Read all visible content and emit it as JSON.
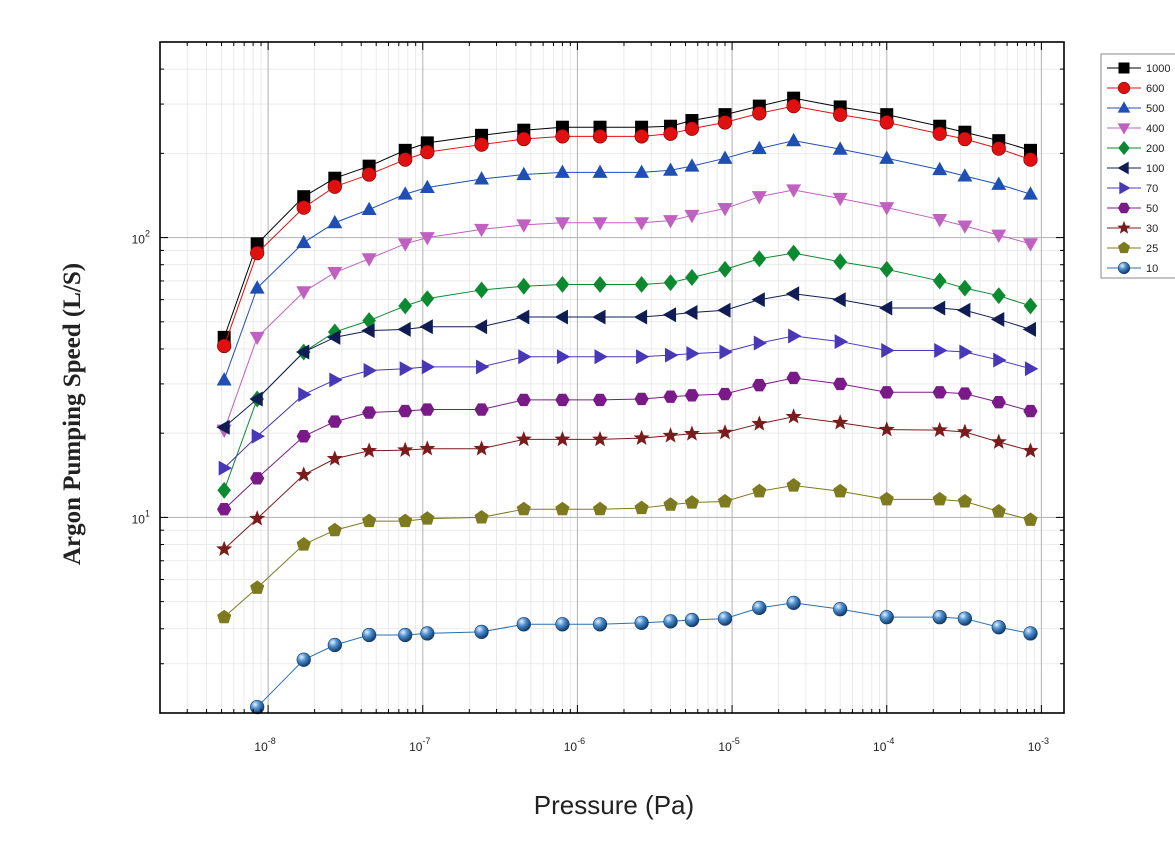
{
  "chart_data": {
    "type": "line",
    "title": "",
    "xlabel": "Pressure (Pa)",
    "ylabel": "Argon Pumping Speed (L/S)",
    "x_scale": "log",
    "y_scale": "log",
    "xlim": [
      2e-09,
      0.0014
    ],
    "ylim": [
      2,
      500
    ],
    "grid": true,
    "legend_position": "right",
    "x_ticks": [
      {
        "base": "10",
        "exp": "-8"
      },
      {
        "base": "10",
        "exp": "-7"
      },
      {
        "base": "10",
        "exp": "-6"
      },
      {
        "base": "10",
        "exp": "-5"
      },
      {
        "base": "10",
        "exp": "-4"
      },
      {
        "base": "10",
        "exp": "-3"
      }
    ],
    "y_ticks": [
      {
        "base": "10",
        "exp": "1"
      },
      {
        "base": "10",
        "exp": "2"
      }
    ],
    "x": [
      5.2e-09,
      8.5e-09,
      1.7e-08,
      2.7e-08,
      4.5e-08,
      7.7e-08,
      1.07e-07,
      2.4e-07,
      4.5e-07,
      8e-07,
      1.4e-06,
      2.6e-06,
      4e-06,
      5.5e-06,
      9e-06,
      1.5e-05,
      2.5e-05,
      5e-05,
      0.0001,
      0.00022,
      0.00032,
      0.00053,
      0.00085
    ],
    "series": [
      {
        "name": "1000",
        "marker": "square",
        "color": "#000000",
        "values": [
          44,
          95,
          140,
          163,
          180,
          205,
          218,
          232,
          242,
          248,
          248,
          248,
          250,
          262,
          275,
          295,
          315,
          293,
          275,
          250,
          238,
          222,
          205
        ]
      },
      {
        "name": "600",
        "marker": "circle",
        "color": "#e01010",
        "values": [
          41,
          88,
          128,
          152,
          168,
          190,
          202,
          215,
          225,
          230,
          230,
          230,
          235,
          245,
          258,
          278,
          295,
          275,
          258,
          235,
          225,
          208,
          190
        ]
      },
      {
        "name": "500",
        "marker": "triangle-up",
        "color": "#1f4fb4",
        "values": [
          31,
          66,
          96,
          113,
          126,
          143,
          151,
          162,
          168,
          171,
          171,
          171,
          174,
          180,
          192,
          208,
          222,
          207,
          192,
          175,
          166,
          155,
          143
        ]
      },
      {
        "name": "400",
        "marker": "triangle-down",
        "color": "#c060c0",
        "values": [
          20.5,
          44,
          64,
          75,
          84,
          95,
          100,
          107,
          111,
          113,
          113,
          113,
          115,
          120,
          127,
          140,
          148,
          138,
          128,
          116,
          110,
          102,
          95
        ]
      },
      {
        "name": "200",
        "marker": "diamond",
        "color": "#0c8a30",
        "values": [
          12.5,
          26.5,
          39,
          46,
          50.5,
          57,
          60.5,
          65,
          67,
          68,
          68,
          68,
          69,
          72,
          77,
          84,
          88,
          82,
          77,
          70,
          66,
          62,
          57
        ]
      },
      {
        "name": "100",
        "marker": "triangle-left",
        "color": "#101c54",
        "values": [
          21,
          26.5,
          39,
          44,
          46.5,
          47,
          48,
          48,
          52,
          52,
          52,
          52,
          53,
          54,
          55,
          60,
          63,
          60,
          56,
          56,
          55,
          51,
          47
        ]
      },
      {
        "name": "70",
        "marker": "triangle-right",
        "color": "#4838b8",
        "values": [
          15,
          19.5,
          27.5,
          31,
          33.5,
          34,
          34.5,
          34.5,
          37.5,
          37.5,
          37.5,
          37.5,
          38,
          38.5,
          39,
          42,
          44.5,
          42.5,
          39.5,
          39.5,
          39,
          36.5,
          34
        ]
      },
      {
        "name": "50",
        "marker": "hexagon",
        "color": "#7a1a88",
        "values": [
          10.7,
          13.8,
          19.5,
          22,
          23.7,
          24,
          24.3,
          24.3,
          26.3,
          26.3,
          26.3,
          26.5,
          27,
          27.3,
          27.6,
          29.7,
          31.5,
          30,
          28,
          28,
          27.7,
          25.8,
          24
        ]
      },
      {
        "name": "30",
        "marker": "star",
        "color": "#7a1c1c",
        "values": [
          7.7,
          9.9,
          14.2,
          16.2,
          17.3,
          17.4,
          17.6,
          17.6,
          19,
          19,
          19,
          19.2,
          19.6,
          19.9,
          20.1,
          21.6,
          22.9,
          21.8,
          20.6,
          20.5,
          20.2,
          18.6,
          17.3
        ]
      },
      {
        "name": "25",
        "marker": "pentagon",
        "color": "#7d7a20",
        "values": [
          4.4,
          5.6,
          8,
          9,
          9.7,
          9.7,
          9.9,
          10,
          10.7,
          10.7,
          10.7,
          10.8,
          11.1,
          11.3,
          11.4,
          12.4,
          13,
          12.4,
          11.6,
          11.6,
          11.4,
          10.5,
          9.8
        ]
      },
      {
        "name": "10",
        "marker": "sphere",
        "color": "#2a6fb0",
        "values": [
          null,
          2.1,
          3.1,
          3.5,
          3.8,
          3.8,
          3.85,
          3.9,
          4.15,
          4.15,
          4.15,
          4.2,
          4.25,
          4.3,
          4.35,
          4.75,
          4.95,
          4.7,
          4.4,
          4.4,
          4.35,
          4.05,
          3.85
        ]
      }
    ]
  }
}
